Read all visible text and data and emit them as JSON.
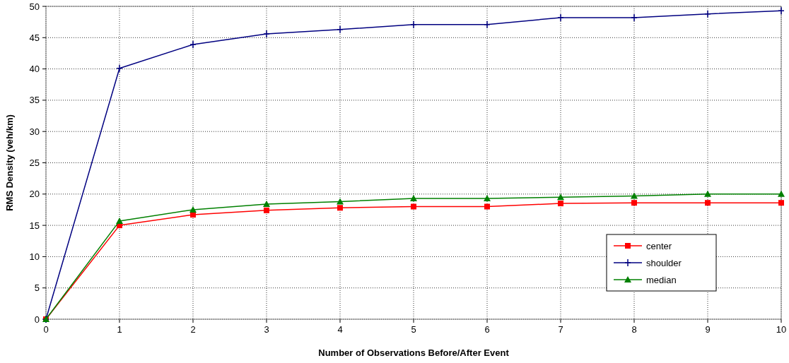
{
  "chart_data": {
    "type": "line",
    "xlabel": "Number of Observations Before/After Event",
    "ylabel": "RMS Density (veh/km)",
    "x": [
      0,
      1,
      2,
      3,
      4,
      5,
      6,
      7,
      8,
      9,
      10
    ],
    "xlim": [
      0,
      10
    ],
    "xticks": [
      0,
      1,
      2,
      3,
      4,
      5,
      6,
      7,
      8,
      9,
      10
    ],
    "ylim": [
      0,
      50
    ],
    "yticks": [
      0,
      5,
      10,
      15,
      20,
      25,
      30,
      35,
      40,
      45,
      50
    ],
    "grid": true,
    "legend": "bottom right",
    "line_style": "solid",
    "series": [
      {
        "name": "center",
        "color": "#ff0000",
        "marker": "square",
        "values": [
          0,
          15.0,
          16.7,
          17.4,
          17.8,
          18.0,
          18.0,
          18.5,
          18.6,
          18.6,
          18.6
        ]
      },
      {
        "name": "shoulder",
        "color": "#000080",
        "marker": "cross",
        "values": [
          0,
          40.1,
          43.9,
          45.6,
          46.3,
          47.1,
          47.1,
          48.2,
          48.2,
          48.8,
          49.3
        ]
      },
      {
        "name": "median",
        "color": "#008000",
        "marker": "triangle",
        "values": [
          0,
          15.7,
          17.5,
          18.4,
          18.8,
          19.3,
          19.3,
          19.5,
          19.7,
          20.0,
          20.0
        ]
      }
    ]
  }
}
